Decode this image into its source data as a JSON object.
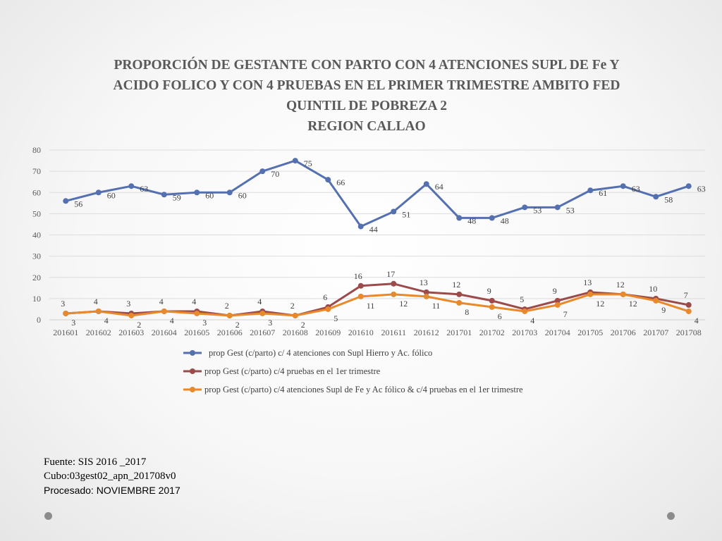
{
  "chart_data": {
    "type": "line",
    "title_lines": [
      "PROPORCIÓN DE GESTANTE  CON PARTO CON 4 ATENCIONES SUPL DE Fe Y",
      "ACIDO FOLICO  Y CON 4 PRUEBAS EN EL PRIMER TRIMESTRE AMBITO FED",
      "QUINTIL DE POBREZA 2"
    ],
    "subtitle": "REGION CALLAO",
    "ylim": [
      0,
      80
    ],
    "yticks": [
      0,
      10,
      20,
      30,
      40,
      50,
      60,
      70,
      80
    ],
    "grid": true,
    "legend_position": "bottom",
    "categories": [
      "201601",
      "201602",
      "201603",
      "201604",
      "201605",
      "201606",
      "201607",
      "201608",
      "201609",
      "201610",
      "201611",
      "201612",
      "201701",
      "201702",
      "201703",
      "201704",
      "201705",
      "201706",
      "201707",
      "201708"
    ],
    "series": [
      {
        "name": "prop Gest (c/parto) c/ 4 atenciones con Supl Hierro y Ac. fólico",
        "color": "#5470b0",
        "values": [
          56,
          60,
          63,
          59,
          60,
          60,
          70,
          75,
          66,
          44,
          51,
          64,
          48,
          48,
          53,
          53,
          61,
          63,
          58,
          63
        ]
      },
      {
        "name": "prop Gest (c/parto) c/4 pruebas en el 1er trimestre",
        "color": "#9c4a4a",
        "values": [
          3,
          4,
          3,
          4,
          4,
          2,
          4,
          2,
          6,
          16,
          17,
          13,
          12,
          9,
          5,
          9,
          13,
          12,
          10,
          7
        ]
      },
      {
        "name": "prop Gest (c/parto) c/4 atenciones Supl de Fe y Ac fólico & c/4 pruebas en el 1er trimestre",
        "color": "#e8892b",
        "values": [
          3,
          4,
          2,
          4,
          3,
          2,
          3,
          2,
          5,
          11,
          12,
          11,
          8,
          6,
          4,
          7,
          12,
          12,
          9,
          4
        ]
      }
    ]
  },
  "footer": {
    "source": "Fuente: SIS 2016 _2017",
    "cube": "Cubo:03gest02_apn_201708v0",
    "processed": "Procesado: NOVIEMBRE 2017"
  }
}
